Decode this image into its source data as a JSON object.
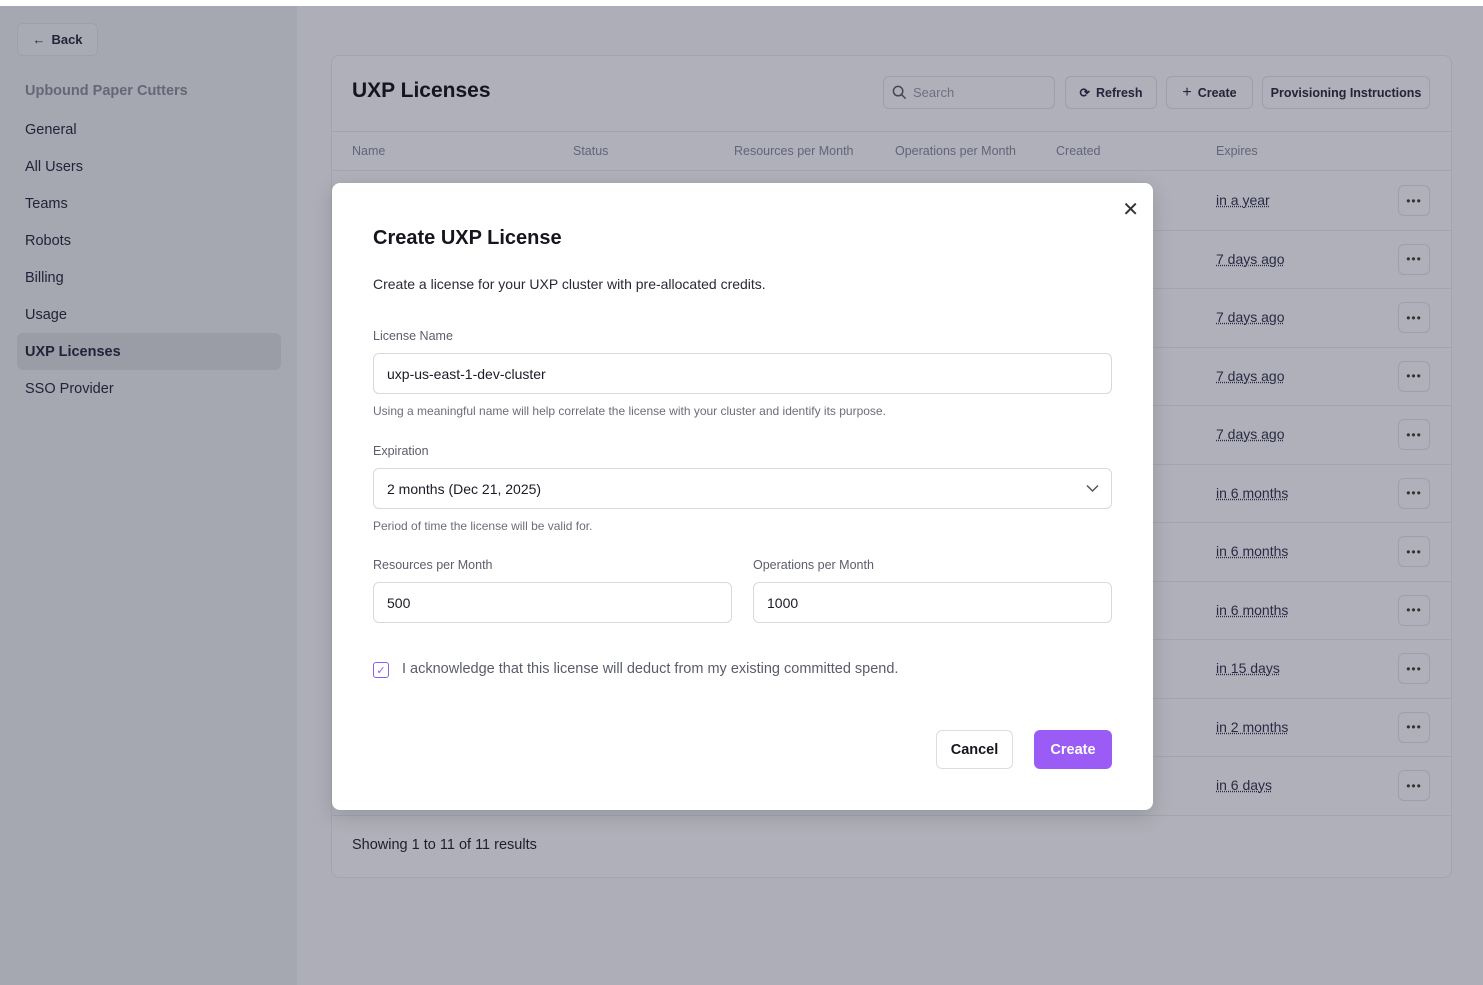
{
  "sidebar": {
    "back_label": "Back",
    "org_name": "Upbound Paper Cutters",
    "items": [
      {
        "label": "General",
        "active": false
      },
      {
        "label": "All Users",
        "active": false
      },
      {
        "label": "Teams",
        "active": false
      },
      {
        "label": "Robots",
        "active": false
      },
      {
        "label": "Billing",
        "active": false
      },
      {
        "label": "Usage",
        "active": false
      },
      {
        "label": "UXP Licenses",
        "active": true
      },
      {
        "label": "SSO Provider",
        "active": false
      }
    ]
  },
  "main": {
    "title": "UXP Licenses",
    "search_placeholder": "Search",
    "refresh_label": "Refresh",
    "create_label": "Create",
    "provisioning_label": "Provisioning Instructions",
    "columns": [
      "Name",
      "Status",
      "Resources per Month",
      "Operations per Month",
      "Created",
      "Expires"
    ],
    "rows": [
      {
        "expires": "in a year"
      },
      {
        "expires": "7 days ago"
      },
      {
        "expires": "7 days ago"
      },
      {
        "expires": "7 days ago"
      },
      {
        "expires": "7 days ago"
      },
      {
        "expires": "in 6 months"
      },
      {
        "expires": "in 6 months"
      },
      {
        "expires": "in 6 months"
      },
      {
        "expires": "in 15 days"
      },
      {
        "expires": "in 2 months"
      },
      {
        "expires": "in 6 days"
      }
    ],
    "more_label": "•••",
    "showing": "Showing 1 to 11 of 11 results"
  },
  "modal": {
    "title": "Create UXP License",
    "description": "Create a license for your UXP cluster with pre-allocated credits.",
    "license_name_label": "License Name",
    "license_name_value": "uxp-us-east-1-dev-cluster",
    "license_name_hint": "Using a meaningful name will help correlate the license with your cluster and identify its purpose.",
    "expiration_label": "Expiration",
    "expiration_value": "2 months (Dec 21, 2025)",
    "expiration_hint": "Period of time the license will be valid for.",
    "resources_label": "Resources per Month",
    "resources_value": "500",
    "operations_label": "Operations per Month",
    "operations_value": "1000",
    "acknowledge_checked": true,
    "acknowledge_label": "I acknowledge that this license will deduct from my existing committed spend.",
    "cancel_label": "Cancel",
    "create_label": "Create",
    "accent_color": "#9b5cf6"
  }
}
